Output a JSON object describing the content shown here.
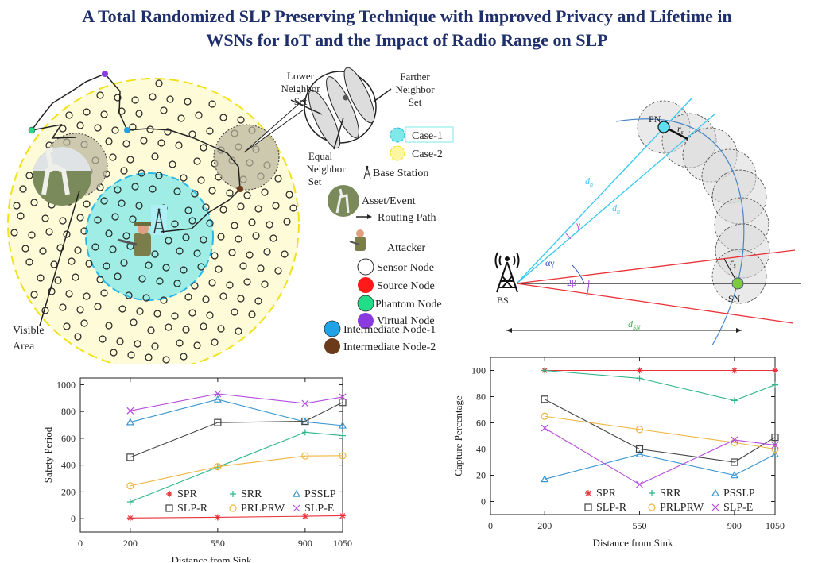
{
  "title_line1": "A Total Randomized SLP Preserving Technique with Improved Privacy and Lifetime in",
  "title_line2": "WSNs for IoT and the Impact of Radio Range on SLP",
  "network_figure": {
    "labels": {
      "lower_neighbor_set": [
        "Lower",
        "Neighbor",
        "Set"
      ],
      "farther_neighbor_set": [
        "Farther",
        "Neighbor",
        "Set"
      ],
      "equal_neighbor_set": [
        "Equal",
        "Neighbor",
        "Set"
      ],
      "visible_area": [
        "Visible",
        "Area"
      ]
    },
    "legend": {
      "case1": "Case-1",
      "case2": "Case-2",
      "base_station": "Base Station",
      "asset_event": "Asset/Event",
      "routing_path": "Routing Path",
      "attacker": "Attacker",
      "sensor_node": "Sensor Node",
      "source_node": "Source Node",
      "phantom_node": "Phantom Node",
      "virtual_node": "Virtual Node",
      "intermediate_node_1": "Intermediate Node-1",
      "intermediate_node_2": "Intermediate Node-2"
    },
    "colors": {
      "case1": "#7fe8e8",
      "case2": "#fdfbd8",
      "case2_border": "#f2e21a",
      "case1_border": "#2ab8e6",
      "source": "#ff1a1a",
      "phantom": "#22dd88",
      "virtual": "#8a3be0",
      "intermediate1": "#1fa3e6",
      "intermediate2": "#6b3a1a"
    }
  },
  "geometry_figure": {
    "labels": {
      "pn": "PN",
      "sn": "SN",
      "bs": "BS",
      "rs_top": "r",
      "rs_sub": "s",
      "rs2": "r",
      "dn1": "d",
      "dn2": "d",
      "dn_sub": "n",
      "dsn": "d",
      "dsn_sub": "SN",
      "gamma": "γ",
      "alpha_gamma": "αγ",
      "two_beta": "2β"
    }
  },
  "chart_data": [
    {
      "type": "line",
      "title": "",
      "xlabel": "Distance from Sink",
      "ylabel": "Safety Period",
      "x": [
        200,
        550,
        900,
        1050
      ],
      "xticks": [
        "0",
        "200",
        "550",
        "900",
        "1050"
      ],
      "yticks": [
        "0",
        "200",
        "400",
        "600",
        "800",
        "1000"
      ],
      "xlim": [
        0,
        1050
      ],
      "ylim": [
        -100,
        1050
      ],
      "legend_position": "bottom-center",
      "series": [
        {
          "name": "SPR",
          "marker": "asterisk",
          "color": "#e8333a",
          "values": [
            5,
            10,
            18,
            22
          ]
        },
        {
          "name": "SRR",
          "marker": "plus",
          "color": "#2db589",
          "values": [
            125,
            385,
            645,
            620
          ]
        },
        {
          "name": "PSSLP",
          "marker": "triangle",
          "color": "#3a96cf",
          "values": [
            720,
            890,
            722,
            695
          ]
        },
        {
          "name": "SLP-R",
          "marker": "square",
          "color": "#444444",
          "values": [
            458,
            717,
            727,
            868
          ]
        },
        {
          "name": "PRLPRW",
          "marker": "circle",
          "color": "#efb540",
          "values": [
            245,
            388,
            468,
            470
          ]
        },
        {
          "name": "SLP-E",
          "marker": "cross",
          "color": "#b44de0",
          "values": [
            805,
            932,
            860,
            908
          ]
        }
      ]
    },
    {
      "type": "line",
      "title": "",
      "xlabel": "Distance from Sink",
      "ylabel": "Capture Percentage",
      "x": [
        200,
        550,
        900,
        1050
      ],
      "xticks": [
        "0",
        "200",
        "550",
        "900",
        "1050"
      ],
      "yticks": [
        "0",
        "20",
        "40",
        "60",
        "80",
        "100"
      ],
      "xlim": [
        0,
        1050
      ],
      "ylim": [
        -10,
        110
      ],
      "legend_position": "bottom-right",
      "series": [
        {
          "name": "SPR",
          "marker": "asterisk",
          "color": "#e8333a",
          "values": [
            100,
            100,
            100,
            100
          ]
        },
        {
          "name": "SRR",
          "marker": "plus",
          "color": "#2db589",
          "values": [
            100,
            94,
            77,
            89
          ]
        },
        {
          "name": "PSSLP",
          "marker": "triangle",
          "color": "#3a96cf",
          "values": [
            17,
            36,
            20,
            36
          ]
        },
        {
          "name": "SLP-R",
          "marker": "square",
          "color": "#444444",
          "values": [
            78,
            40,
            30,
            49
          ]
        },
        {
          "name": "PRLPRW",
          "marker": "circle",
          "color": "#efb540",
          "values": [
            65,
            55,
            45,
            40
          ]
        },
        {
          "name": "SLP-E",
          "marker": "cross",
          "color": "#b44de0",
          "values": [
            56,
            13,
            47,
            43
          ]
        }
      ]
    }
  ]
}
